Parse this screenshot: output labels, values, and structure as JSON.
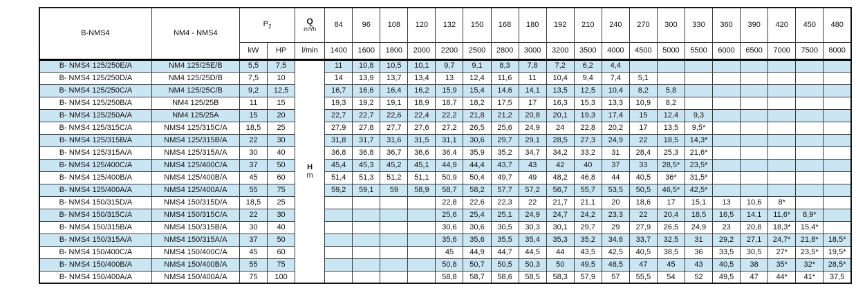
{
  "colors": {
    "row_stripe": "#cbe6f3",
    "grid_line": "#3a3a3a",
    "page_background": "#ffffff"
  },
  "table": {
    "header": {
      "col_b_nms4": "B-NMS4",
      "col_nm4_nms4": "NM4 - NMS4",
      "p2_base": "P",
      "p2_sub": "2",
      "kw": "kW",
      "hp": "HP",
      "q_label": "Q",
      "q_unit": "m³/h",
      "lmin": "l/min",
      "h_label": "H",
      "h_unit": "m",
      "flow_m3h": [
        "84",
        "96",
        "108",
        "120",
        "132",
        "150",
        "168",
        "180",
        "192",
        "210",
        "240",
        "270",
        "300",
        "330",
        "360",
        "390",
        "420",
        "450",
        "480"
      ],
      "flow_lmin": [
        "1400",
        "1600",
        "1800",
        "2000",
        "2200",
        "2500",
        "2800",
        "3000",
        "3200",
        "3500",
        "4000",
        "4500",
        "5000",
        "5500",
        "6000",
        "6500",
        "7000",
        "7500",
        "8000"
      ]
    },
    "rows": [
      {
        "b": "B- NMS4 125/250E/A",
        "n": "NM4 125/25E/B",
        "kw": "5,5",
        "hp": "7,5",
        "v": [
          "11",
          "10,8",
          "10,5",
          "10,1",
          "9,7",
          "9,1",
          "8,3",
          "7,8",
          "7,2",
          "6,2",
          "4,4",
          "",
          "",
          "",
          "",
          "",
          "",
          "",
          ""
        ]
      },
      {
        "b": "B- NMS4 125/250D/A",
        "n": "NM4 125/25D/B",
        "kw": "7,5",
        "hp": "10",
        "v": [
          "14",
          "13,9",
          "13,7",
          "13,4",
          "13",
          "12,4",
          "11,6",
          "11",
          "10,4",
          "9,4",
          "7,4",
          "5,1",
          "",
          "",
          "",
          "",
          "",
          "",
          ""
        ]
      },
      {
        "b": "B- NMS4 125/250C/A",
        "n": "NM4 125/25C/B",
        "kw": "9,2",
        "hp": "12,5",
        "v": [
          "16,7",
          "16,6",
          "16,4",
          "16,2",
          "15,9",
          "15,4",
          "14,6",
          "14,1",
          "13,5",
          "12,5",
          "10,4",
          "8,2",
          "5,8",
          "",
          "",
          "",
          "",
          "",
          ""
        ]
      },
      {
        "b": "B- NMS4 125/250B/A",
        "n": "NM4 125/25B",
        "kw": "11",
        "hp": "15",
        "v": [
          "19,3",
          "19,2",
          "19,1",
          "18,9",
          "18,7",
          "18,2",
          "17,5",
          "17",
          "16,3",
          "15,3",
          "13,3",
          "10,9",
          "8,2",
          "",
          "",
          "",
          "",
          "",
          ""
        ]
      },
      {
        "b": "B- NMS4 125/250A/A",
        "n": "NM4 125/25A",
        "kw": "15",
        "hp": "20",
        "v": [
          "22,7",
          "22,7",
          "22,6",
          "22,4",
          "22,2",
          "21,8",
          "21,2",
          "20,8",
          "20,1",
          "19,3",
          "17,4",
          "15",
          "12,4",
          "9,3",
          "",
          "",
          "",
          "",
          ""
        ]
      },
      {
        "b": "B- NMS4 125/315C/A",
        "n": "NMS4 125/315C/A",
        "kw": "18,5",
        "hp": "25",
        "v": [
          "27,9",
          "27,8",
          "27,7",
          "27,6",
          "27,2",
          "26,5",
          "25,6",
          "24,9",
          "24",
          "22,8",
          "20,2",
          "17",
          "13,5",
          "9,5*",
          "",
          "",
          "",
          "",
          ""
        ]
      },
      {
        "b": "B- NMS4 125/315B/A",
        "n": "NMS4 125/315B/A",
        "kw": "22",
        "hp": "30",
        "v": [
          "31,8",
          "31,7",
          "31,6",
          "31,5",
          "31,1",
          "30,6",
          "29,7",
          "29,1",
          "28,5",
          "27,3",
          "24,9",
          "22",
          "18,5",
          "14,3*",
          "",
          "",
          "",
          "",
          ""
        ]
      },
      {
        "b": "B- NMS4 125/315A/A",
        "n": "NMS4 125/315A/A",
        "kw": "30",
        "hp": "40",
        "v": [
          "36,8",
          "36,8",
          "36,7",
          "36,6",
          "36,4",
          "35,9",
          "35,2",
          "34,7",
          "34,2",
          "33,2",
          "31",
          "28,4",
          "25,3",
          "21,6*",
          "",
          "",
          "",
          "",
          ""
        ]
      },
      {
        "b": "B- NMS4 125/400C/A",
        "n": "NMS4 125/400C/A",
        "kw": "37",
        "hp": "50",
        "v": [
          "45,4",
          "45,3",
          "45,2",
          "45,1",
          "44,9",
          "44,4",
          "43,7",
          "43",
          "42",
          "40",
          "37",
          "33",
          "28,5*",
          "23,5*",
          "",
          "",
          "",
          "",
          ""
        ]
      },
      {
        "b": "B- NMS4 125/400B/A",
        "n": "NMS4 125/400B/A",
        "kw": "45",
        "hp": "60",
        "v": [
          "51,4",
          "51,3",
          "51,2",
          "51,1",
          "50,9",
          "50,4",
          "49,7",
          "49",
          "48,2",
          "46,8",
          "44",
          "40,5",
          "36*",
          "31,5*",
          "",
          "",
          "",
          "",
          ""
        ]
      },
      {
        "b": "B- NMS4 125/400A/A",
        "n": "NMS4 125/400A/A",
        "kw": "55",
        "hp": "75",
        "v": [
          "59,2",
          "59,1",
          "59",
          "58,9",
          "58,7",
          "58,2",
          "57,7",
          "57,2",
          "56,7",
          "55,7",
          "53,5",
          "50,5",
          "46,5*",
          "42,5*",
          "",
          "",
          "",
          "",
          ""
        ]
      },
      {
        "b": "B- NMS4 150/315D/A",
        "n": "NMS4 150/315D/A",
        "kw": "18,5",
        "hp": "25",
        "v": [
          "",
          "",
          "",
          "",
          "22,8",
          "22,6",
          "22,3",
          "22",
          "21,7",
          "21,1",
          "20",
          "18,6",
          "17",
          "15,1",
          "13",
          "10,6",
          "8*",
          "",
          ""
        ]
      },
      {
        "b": "B- NMS4 150/315C/A",
        "n": "NMS4 150/315C/A",
        "kw": "22",
        "hp": "30",
        "v": [
          "",
          "",
          "",
          "",
          "25,6",
          "25,4",
          "25,1",
          "24,9",
          "24,7",
          "24,2",
          "23,3",
          "22",
          "20,4",
          "18,5",
          "16,5",
          "14,1",
          "11,6*",
          "8,9*",
          ""
        ]
      },
      {
        "b": "B- NMS4 150/315B/A",
        "n": "NMS4 150/315B/A",
        "kw": "30",
        "hp": "40",
        "v": [
          "",
          "",
          "",
          "",
          "30,6",
          "30,6",
          "30,5",
          "30,3",
          "30,1",
          "29,7",
          "29",
          "27,9",
          "26,5",
          "24,9",
          "23",
          "20,8",
          "18,3*",
          "15,4*",
          ""
        ]
      },
      {
        "b": "B- NMS4 150/315A/A",
        "n": "NMS4 150/315A/A",
        "kw": "37",
        "hp": "50",
        "v": [
          "",
          "",
          "",
          "",
          "35,6",
          "35,6",
          "35,5",
          "35,4",
          "35,3",
          "35,2",
          "34,6",
          "33,7",
          "32,5",
          "31",
          "29,2",
          "27,1",
          "24,7*",
          "21,8*",
          "18,5*"
        ]
      },
      {
        "b": "B- NMS4 150/400C/A",
        "n": "NMS4 150/400C/A",
        "kw": "45",
        "hp": "60",
        "v": [
          "",
          "",
          "",
          "",
          "45",
          "44,9",
          "44,7",
          "44,5",
          "44",
          "43,5",
          "42,5",
          "40,5",
          "38,5",
          "36",
          "33,5",
          "30,5",
          "27*",
          "23,5*",
          "19,5*"
        ]
      },
      {
        "b": "B- NMS4 150/400B/A",
        "n": "NMS4 150/400B/A",
        "kw": "55",
        "hp": "75",
        "v": [
          "",
          "",
          "",
          "",
          "50,8",
          "50,7",
          "50,5",
          "50,3",
          "50",
          "49,5",
          "48,5",
          "47",
          "45",
          "43",
          "40,5",
          "38",
          "35*",
          "32*",
          "28,5*"
        ]
      },
      {
        "b": "B- NMS4 150/400A/A",
        "n": "NMS4 150/400A/A",
        "kw": "75",
        "hp": "100",
        "v": [
          "",
          "",
          "",
          "",
          "58,8",
          "58,7",
          "58,6",
          "58,5",
          "58,3",
          "57,9",
          "57",
          "55,5",
          "54",
          "52",
          "49,5",
          "47",
          "44*",
          "41*",
          "37,5"
        ]
      }
    ]
  }
}
